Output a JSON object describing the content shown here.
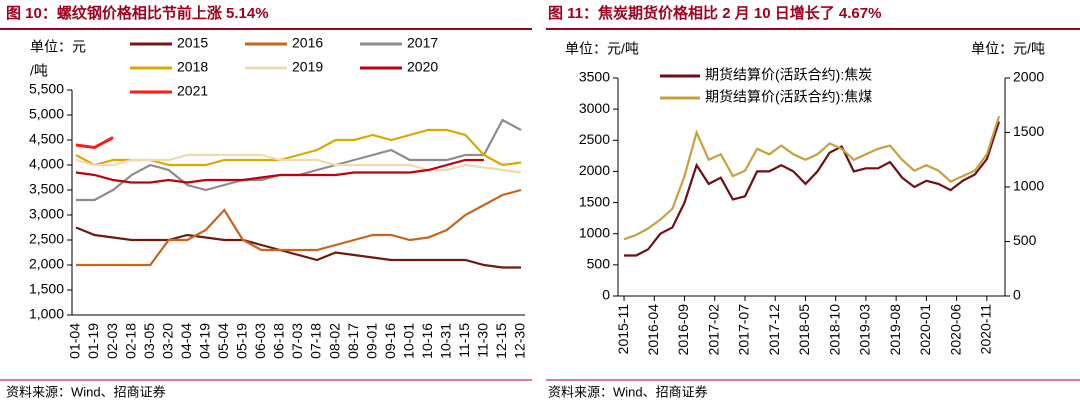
{
  "charts": [
    {
      "chart_data": {
        "type": "line",
        "title": "图 10：螺纹钢价格相比节前上涨 5.14%",
        "y_unit": [
          "单位：元",
          "/吨"
        ],
        "source": "资料来源：Wind、招商证券",
        "categories": [
          "01-04",
          "01-19",
          "02-03",
          "02-18",
          "03-05",
          "03-20",
          "04-04",
          "04-19",
          "05-04",
          "05-19",
          "06-03",
          "06-18",
          "07-03",
          "07-18",
          "08-02",
          "08-17",
          "09-01",
          "09-16",
          "10-01",
          "10-16",
          "10-31",
          "11-15",
          "11-30",
          "12-15",
          "12-30"
        ],
        "ylim": [
          1000,
          5500
        ],
        "yticks": [
          {
            "value": 1000,
            "label": "1,000"
          },
          {
            "value": 1500,
            "label": "1,500"
          },
          {
            "value": 2000,
            "label": "2,000"
          },
          {
            "value": 2500,
            "label": "2,500"
          },
          {
            "value": 3000,
            "label": "3,000"
          },
          {
            "value": 3500,
            "label": "3,500"
          },
          {
            "value": 4000,
            "label": "4,000"
          },
          {
            "value": 4500,
            "label": "4,500"
          },
          {
            "value": 5000,
            "label": "5,000"
          },
          {
            "value": 5500,
            "label": "5,500"
          }
        ],
        "series": [
          {
            "name": "2015",
            "color": "#6e1a0e",
            "values": [
              2750,
              2600,
              2550,
              2500,
              2500,
              2500,
              2600,
              2550,
              2500,
              2500,
              2400,
              2300,
              2200,
              2100,
              2250,
              2200,
              2150,
              2100,
              2100,
              2100,
              2100,
              2100,
              2000,
              1950,
              1950
            ]
          },
          {
            "name": "2016",
            "color": "#c8641e",
            "values": [
              2000,
              2000,
              2000,
              2000,
              2000,
              2500,
              2500,
              2700,
              3100,
              2500,
              2300,
              2300,
              2300,
              2300,
              2400,
              2500,
              2600,
              2600,
              2500,
              2550,
              2700,
              3000,
              3200,
              3400,
              3500
            ]
          },
          {
            "name": "2017",
            "color": "#8c8c8c",
            "values": [
              3300,
              3300,
              3500,
              3800,
              4000,
              3900,
              3600,
              3500,
              3600,
              3700,
              3700,
              3800,
              3800,
              3900,
              4000,
              4100,
              4200,
              4300,
              4100,
              4100,
              4100,
              4200,
              4200,
              4900,
              4700
            ]
          },
          {
            "name": "2018",
            "color": "#dba800",
            "values": [
              4200,
              4000,
              4100,
              4100,
              4100,
              4000,
              4000,
              4000,
              4100,
              4100,
              4100,
              4100,
              4200,
              4300,
              4500,
              4500,
              4600,
              4500,
              4600,
              4700,
              4700,
              4600,
              4200,
              4000,
              4050
            ]
          },
          {
            "name": "2019",
            "color": "#f0dab0",
            "values": [
              4100,
              4000,
              4000,
              4100,
              4100,
              4100,
              4200,
              4200,
              4200,
              4200,
              4200,
              4100,
              4100,
              4100,
              4000,
              4000,
              4000,
              4000,
              4000,
              3900,
              3900,
              4000,
              3950,
              3900,
              3850
            ]
          },
          {
            "name": "2020",
            "color": "#c0000e",
            "values": [
              3850,
              3800,
              3700,
              3650,
              3650,
              3700,
              3650,
              3700,
              3700,
              3700,
              3750,
              3800,
              3800,
              3800,
              3800,
              3850,
              3850,
              3850,
              3850,
              3900,
              4000,
              4100,
              4100,
              null,
              null
            ]
          },
          {
            "name": "2021",
            "color": "#ff1a1a",
            "values": [
              4400,
              4350,
              4550,
              null,
              null,
              null,
              null,
              null,
              null,
              null,
              null,
              null,
              null,
              null,
              null,
              null,
              null,
              null,
              null,
              null,
              null,
              null,
              null,
              null,
              null
            ]
          }
        ]
      }
    },
    {
      "chart_data": {
        "type": "line",
        "title": "图 11：焦炭期货价格相比 2 月 10 日增长了 4.67%",
        "y_unit": "单位：元/吨",
        "y2_unit": "单位：元/吨",
        "source": "资料来源：Wind、招商证券",
        "x": [
          "2015-11",
          "2016-01",
          "2016-03",
          "2016-05",
          "2016-07",
          "2016-09",
          "2016-11",
          "2017-01",
          "2017-03",
          "2017-05",
          "2017-07",
          "2017-09",
          "2017-11",
          "2018-01",
          "2018-03",
          "2018-05",
          "2018-07",
          "2018-09",
          "2018-11",
          "2019-01",
          "2019-03",
          "2019-05",
          "2019-07",
          "2019-09",
          "2019-11",
          "2020-01",
          "2020-03",
          "2020-05",
          "2020-07",
          "2020-09",
          "2020-11",
          "2021-01"
        ],
        "xlim": [
          "2015-10",
          "2021-02"
        ],
        "xticks": [
          "2015-11",
          "2016-04",
          "2016-09",
          "2017-02",
          "2017-07",
          "2017-12",
          "2018-05",
          "2018-10",
          "2019-03",
          "2019-08",
          "2020-01",
          "2020-06",
          "2020-11"
        ],
        "ylim": [
          0,
          3500
        ],
        "yticks": [
          0,
          500,
          1000,
          1500,
          2000,
          2500,
          3000,
          3500
        ],
        "y2lim": [
          0,
          2000
        ],
        "y2ticks": [
          0,
          500,
          1000,
          1500,
          2000
        ],
        "series": [
          {
            "name": "期货结算价(活跃合约):焦炭",
            "color": "#6e0f14",
            "values": [
              650,
              650,
              750,
              1000,
              1100,
              1500,
              2100,
              1800,
              1900,
              1550,
              1600,
              2000,
              2000,
              2100,
              2000,
              1800,
              2000,
              2300,
              2400,
              2000,
              2050,
              2050,
              2150,
              1900,
              1750,
              1850,
              1800,
              1700,
              1850,
              1950,
              2200,
              2800
            ]
          },
          {
            "name": "期货结算价(活跃合约):焦煤",
            "color": "#c9a040",
            "axis": "y2",
            "values": [
              520,
              560,
              620,
              700,
              800,
              1100,
              1500,
              1250,
              1300,
              1100,
              1150,
              1350,
              1300,
              1380,
              1300,
              1250,
              1300,
              1400,
              1350,
              1250,
              1300,
              1350,
              1380,
              1250,
              1150,
              1200,
              1150,
              1050,
              1100,
              1150,
              1300,
              1650
            ]
          }
        ]
      }
    }
  ]
}
